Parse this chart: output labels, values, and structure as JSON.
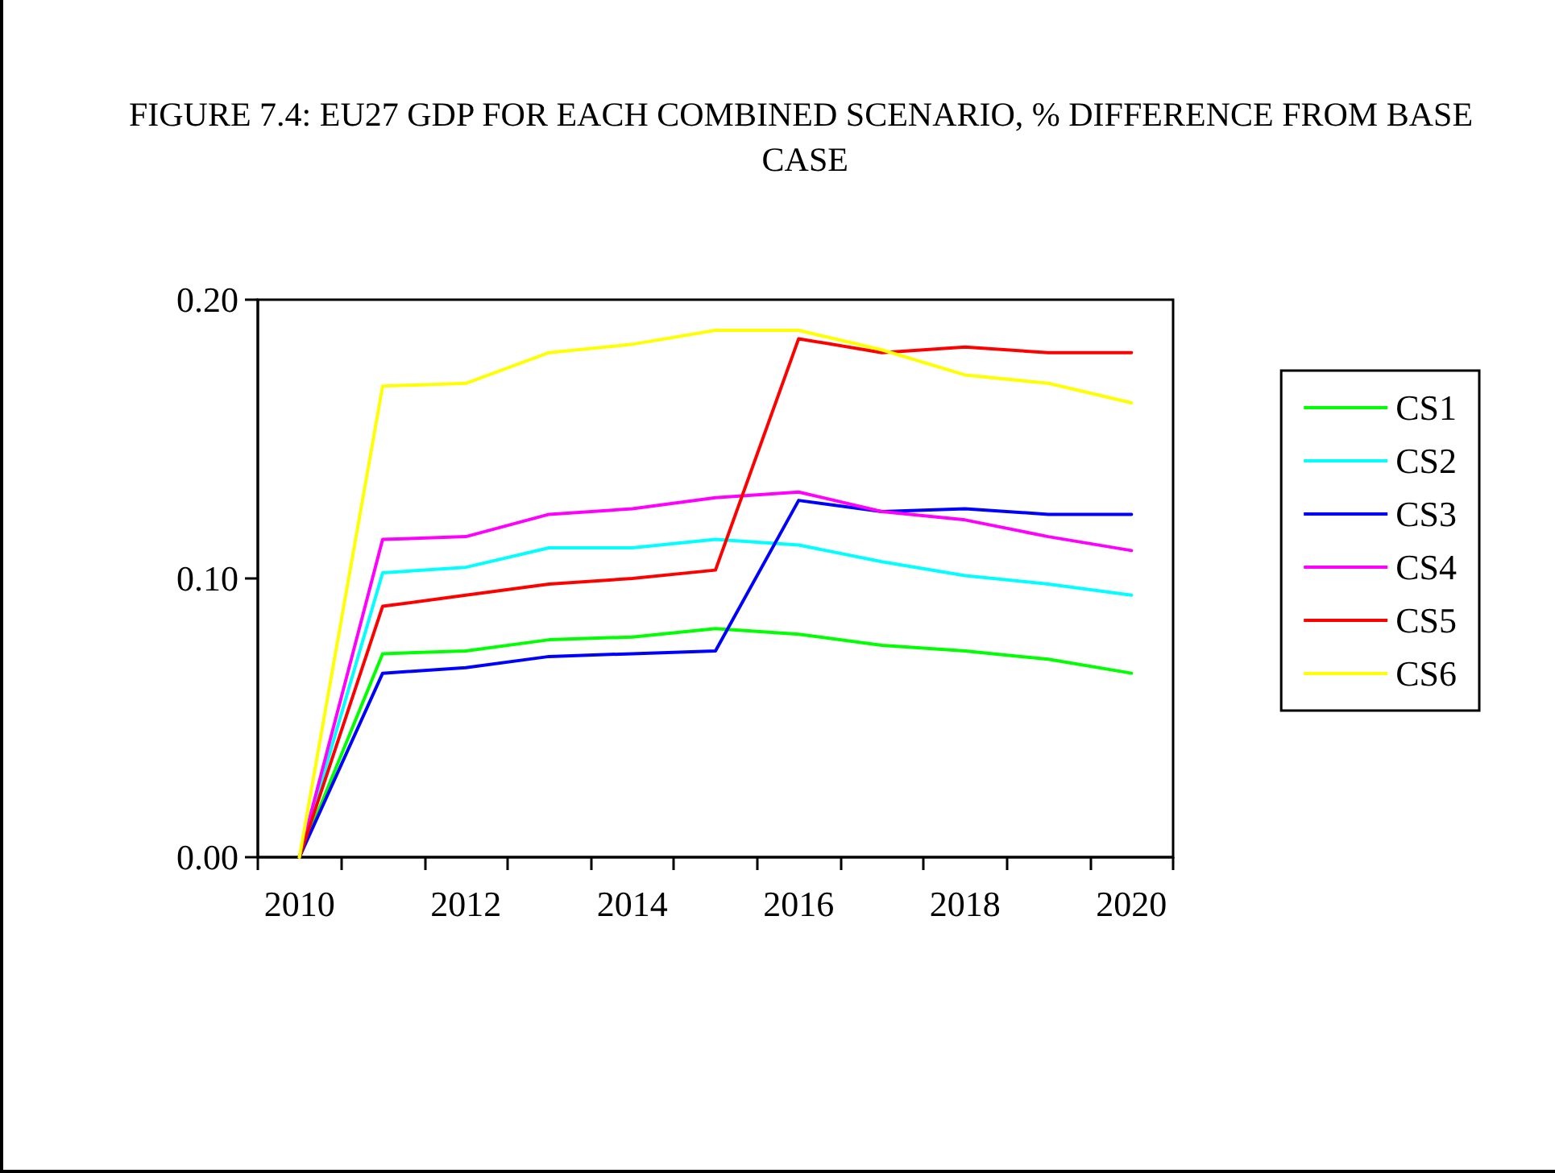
{
  "chart_data": {
    "type": "line",
    "title": "FIGURE 7.4: EU27 GDP FOR EACH COMBINED SCENARIO, % DIFFERENCE FROM BASE CASE",
    "categories": [
      "2010",
      null,
      "2012",
      null,
      "2014",
      null,
      "2016",
      null,
      "2018",
      null,
      "2020"
    ],
    "series": [
      {
        "name": "CS1",
        "color": "#00ff00",
        "values": [
          0,
          0.073,
          0.074,
          0.078,
          0.079,
          0.082,
          0.08,
          0.076,
          0.074,
          0.071,
          0.066
        ]
      },
      {
        "name": "CS2",
        "color": "#00ffff",
        "values": [
          0,
          0.102,
          0.104,
          0.111,
          0.111,
          0.114,
          0.112,
          0.106,
          0.101,
          0.098,
          0.094
        ]
      },
      {
        "name": "CS3",
        "color": "#0000ff",
        "values": [
          0,
          0.066,
          0.068,
          0.072,
          0.073,
          0.074,
          0.128,
          0.124,
          0.125,
          0.123,
          0.123
        ]
      },
      {
        "name": "CS4",
        "color": "#ff00ff",
        "values": [
          0,
          0.114,
          0.115,
          0.123,
          0.125,
          0.129,
          0.131,
          0.124,
          0.121,
          0.115,
          0.11
        ]
      },
      {
        "name": "CS5",
        "color": "#ff0000",
        "values": [
          0,
          0.09,
          0.094,
          0.098,
          0.1,
          0.103,
          0.186,
          0.181,
          0.183,
          0.181,
          0.181
        ]
      },
      {
        "name": "CS6",
        "color": "#ffff00",
        "values": [
          0,
          0.169,
          0.17,
          0.181,
          0.184,
          0.189,
          0.189,
          0.182,
          0.173,
          0.17,
          0.163
        ]
      }
    ],
    "ylim": [
      0,
      0.2
    ],
    "yticks": [
      {
        "value": 0,
        "label": "0.00"
      },
      {
        "value": 0.1,
        "label": "0.10"
      },
      {
        "value": 0.2,
        "label": "0.20"
      }
    ],
    "grid": false,
    "legend": "right",
    "marker": "none",
    "line_style": "solid"
  }
}
